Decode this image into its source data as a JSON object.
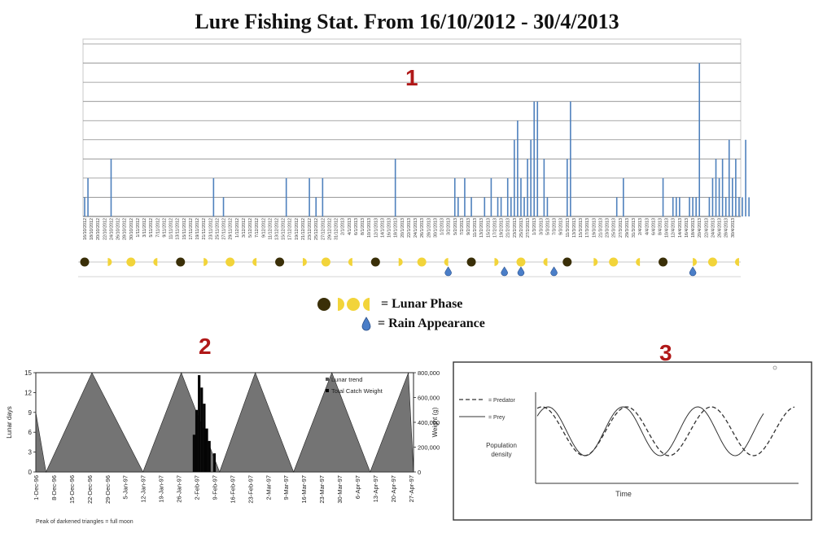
{
  "title": "Lure Fishing Stat. From 16/10/2012 - 30/4/2013",
  "panel_labels": [
    "1",
    "2",
    "3"
  ],
  "legend": {
    "lunar_label": "= Lunar Phase",
    "rain_label": "= Rain Appearance",
    "icons": [
      "new-moon-icon",
      "first-quarter-icon",
      "full-moon-icon",
      "last-quarter-icon",
      "rain-drop-icon"
    ]
  },
  "colors": {
    "bar": "#4f81bd",
    "moon_dark": "#3a2f08",
    "moon_yellow": "#f2d43a",
    "rain": "#4a7ec8",
    "panel_label": "#b01818"
  },
  "chart_data": [
    {
      "type": "bar",
      "title": "Lure Fishing Stat. From 16/10/2012 - 30/4/2013",
      "grid": true,
      "ylim": [
        0,
        9
      ],
      "categories": [
        "16/10/2012",
        "18/10/2012",
        "20/10/2012",
        "22/10/2012",
        "24/10/2012",
        "26/10/2012",
        "28/10/2012",
        "30/10/2012",
        "1/11/2012",
        "3/11/2012",
        "5/11/2012",
        "7/11/2012",
        "9/11/2012",
        "11/11/2012",
        "13/11/2012",
        "15/11/2012",
        "17/11/2012",
        "19/11/2012",
        "21/11/2012",
        "23/11/2012",
        "25/11/2012",
        "27/11/2012",
        "29/11/2012",
        "1/12/2012",
        "3/12/2012",
        "5/12/2012",
        "7/12/2012",
        "9/12/2012",
        "11/12/2012",
        "13/12/2012",
        "15/12/2012",
        "17/12/2012",
        "19/12/2012",
        "21/12/2012",
        "23/12/2012",
        "25/12/2012",
        "27/12/2012",
        "29/12/2012",
        "31/12/2012",
        "2/1/2013",
        "4/1/2013",
        "6/1/2013",
        "8/1/2013",
        "10/1/2013",
        "12/1/2013",
        "14/1/2013",
        "16/1/2013",
        "18/1/2013",
        "20/1/2013",
        "22/1/2013",
        "24/1/2013",
        "26/1/2013",
        "28/1/2013",
        "30/1/2013",
        "1/2/2013",
        "3/2/2013",
        "5/2/2013",
        "7/2/2013",
        "9/2/2013",
        "11/2/2013",
        "13/2/2013",
        "15/2/2013",
        "17/2/2013",
        "19/2/2013",
        "21/2/2013",
        "23/2/2013",
        "25/2/2013",
        "27/2/2013",
        "1/3/2013",
        "3/3/2013",
        "5/3/2013",
        "7/3/2013",
        "9/3/2013",
        "11/3/2013",
        "13/3/2013",
        "15/3/2013",
        "17/3/2013",
        "19/3/2013",
        "21/3/2013",
        "23/3/2013",
        "25/3/2013",
        "27/3/2013",
        "29/3/2013",
        "31/3/2013",
        "2/4/2013",
        "4/4/2013",
        "6/4/2013",
        "8/4/2013",
        "10/4/2013",
        "12/4/2013",
        "14/4/2013",
        "16/4/2013",
        "18/4/2013",
        "20/4/2013",
        "22/4/2013",
        "24/4/2013",
        "26/4/2013",
        "28/4/2013",
        "30/4/2013"
      ],
      "bars": [
        {
          "day": 0,
          "value": 1
        },
        {
          "day": 1,
          "value": 2
        },
        {
          "day": 8,
          "value": 3
        },
        {
          "day": 39,
          "value": 2
        },
        {
          "day": 42,
          "value": 1
        },
        {
          "day": 61,
          "value": 2
        },
        {
          "day": 68,
          "value": 2
        },
        {
          "day": 70,
          "value": 1
        },
        {
          "day": 72,
          "value": 2
        },
        {
          "day": 94,
          "value": 3
        },
        {
          "day": 112,
          "value": 2
        },
        {
          "day": 113,
          "value": 1
        },
        {
          "day": 115,
          "value": 2
        },
        {
          "day": 117,
          "value": 1
        },
        {
          "day": 121,
          "value": 1
        },
        {
          "day": 123,
          "value": 2
        },
        {
          "day": 125,
          "value": 1
        },
        {
          "day": 126,
          "value": 1
        },
        {
          "day": 128,
          "value": 2
        },
        {
          "day": 129,
          "value": 1
        },
        {
          "day": 130,
          "value": 4
        },
        {
          "day": 131,
          "value": 5
        },
        {
          "day": 132,
          "value": 2
        },
        {
          "day": 133,
          "value": 1
        },
        {
          "day": 134,
          "value": 3
        },
        {
          "day": 135,
          "value": 4
        },
        {
          "day": 136,
          "value": 6
        },
        {
          "day": 137,
          "value": 6
        },
        {
          "day": 139,
          "value": 3
        },
        {
          "day": 140,
          "value": 1
        },
        {
          "day": 146,
          "value": 3
        },
        {
          "day": 147,
          "value": 6
        },
        {
          "day": 161,
          "value": 1
        },
        {
          "day": 163,
          "value": 2
        },
        {
          "day": 175,
          "value": 2
        },
        {
          "day": 178,
          "value": 1
        },
        {
          "day": 179,
          "value": 1
        },
        {
          "day": 180,
          "value": 1
        },
        {
          "day": 183,
          "value": 1
        },
        {
          "day": 184,
          "value": 1
        },
        {
          "day": 185,
          "value": 1
        },
        {
          "day": 186,
          "value": 8
        },
        {
          "day": 189,
          "value": 1
        },
        {
          "day": 190,
          "value": 2
        },
        {
          "day": 191,
          "value": 3
        },
        {
          "day": 192,
          "value": 2
        },
        {
          "day": 193,
          "value": 3
        },
        {
          "day": 194,
          "value": 1
        },
        {
          "day": 195,
          "value": 4
        },
        {
          "day": 196,
          "value": 2
        },
        {
          "day": 197,
          "value": 3
        },
        {
          "day": 198,
          "value": 1
        },
        {
          "day": 199,
          "value": 1
        },
        {
          "day": 200,
          "value": 4
        },
        {
          "day": 201,
          "value": 1
        }
      ],
      "moon_phases": [
        {
          "day": 0,
          "phase": "new"
        },
        {
          "day": 7,
          "phase": "first-quarter"
        },
        {
          "day": 14,
          "phase": "full"
        },
        {
          "day": 22,
          "phase": "last-quarter"
        },
        {
          "day": 29,
          "phase": "new"
        },
        {
          "day": 36,
          "phase": "first-quarter"
        },
        {
          "day": 44,
          "phase": "full"
        },
        {
          "day": 52,
          "phase": "last-quarter"
        },
        {
          "day": 59,
          "phase": "new"
        },
        {
          "day": 66,
          "phase": "first-quarter"
        },
        {
          "day": 73,
          "phase": "full"
        },
        {
          "day": 81,
          "phase": "last-quarter"
        },
        {
          "day": 88,
          "phase": "new"
        },
        {
          "day": 95,
          "phase": "first-quarter"
        },
        {
          "day": 102,
          "phase": "full"
        },
        {
          "day": 110,
          "phase": "last-quarter"
        },
        {
          "day": 117,
          "phase": "new"
        },
        {
          "day": 124,
          "phase": "first-quarter"
        },
        {
          "day": 132,
          "phase": "full"
        },
        {
          "day": 140,
          "phase": "last-quarter"
        },
        {
          "day": 146,
          "phase": "new"
        },
        {
          "day": 154,
          "phase": "first-quarter"
        },
        {
          "day": 160,
          "phase": "full"
        },
        {
          "day": 168,
          "phase": "last-quarter"
        },
        {
          "day": 175,
          "phase": "new"
        },
        {
          "day": 184,
          "phase": "first-quarter"
        },
        {
          "day": 190,
          "phase": "full"
        },
        {
          "day": 198,
          "phase": "last-quarter"
        }
      ],
      "rain_days": [
        110,
        127,
        132,
        142,
        184
      ]
    },
    {
      "type": "bar",
      "title": "",
      "xlabel": "",
      "ylabel": "Lunar days",
      "y2label": "Weight (g)",
      "ylim": [
        0,
        15
      ],
      "y_ticks": [
        "0",
        "3",
        "6",
        "9",
        "12",
        "15"
      ],
      "y2_ticks": [
        "0",
        "200,000",
        "400,000",
        "600,000",
        "800,000"
      ],
      "categories": [
        "1-Dec-96",
        "8-Dec-96",
        "15-Dec-96",
        "22-Dec-96",
        "29-Dec-96",
        "5-Jan-97",
        "12-Jan-97",
        "19-Jan-97",
        "26-Jan-97",
        "2-Feb-97",
        "9-Feb-97",
        "16-Feb-97",
        "23-Feb-97",
        "2-Mar-97",
        "9-Mar-97",
        "16-Mar-97",
        "23-Mar-97",
        "30-Mar-97",
        "6-Apr-97",
        "13-Apr-97",
        "20-Apr-97",
        "27-Apr-97"
      ],
      "series": [
        {
          "name": "Lunar trend",
          "type": "area",
          "x": [
            0,
            4,
            22,
            42,
            57,
            72,
            86,
            101,
            116,
            131,
            146
          ],
          "values": [
            9,
            0,
            15,
            0,
            15,
            0,
            15,
            0,
            15,
            0,
            15
          ]
        },
        {
          "name": "Total Catch Weight",
          "type": "bar",
          "x": [
            62,
            63,
            64,
            65,
            66,
            67,
            68,
            70
          ],
          "values": [
            300000,
            500000,
            780000,
            680000,
            550000,
            350000,
            250000,
            150000
          ]
        }
      ],
      "legend": "top-right",
      "footnote": "Peak of darkened triangles = full moon"
    },
    {
      "type": "line",
      "title": "",
      "xlabel": "Time",
      "ylabel": "Population density",
      "series": [
        {
          "name": "= Predator",
          "style": "dashed"
        },
        {
          "name": "= Prey",
          "style": "solid"
        }
      ]
    }
  ]
}
